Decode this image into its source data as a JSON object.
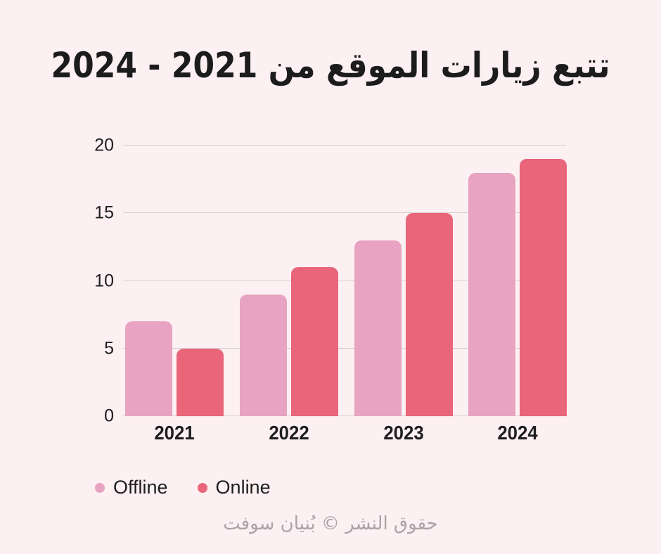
{
  "title": "تتبع زيارات الموقع من 2021 - 2024",
  "footer": "حقوق النشر © بُنيان سوفت",
  "legend": [
    {
      "label": "Offline",
      "color": "#e7a3c1"
    },
    {
      "label": "Online",
      "color": "#e8657a"
    }
  ],
  "colors": {
    "background": "#fdf0f2",
    "offline_bar": "#e7a3c1",
    "online_bar": "#e8657a",
    "gridline": "#d7cfd2",
    "text": "#1e1e1e",
    "footer_text": "#aaa4a7"
  },
  "chart_data": {
    "type": "bar",
    "title": "تتبع زيارات الموقع من 2021 - 2024",
    "categories": [
      "2021",
      "2022",
      "2023",
      "2024"
    ],
    "series": [
      {
        "name": "Offline",
        "color": "#e7a3c1",
        "values": [
          7,
          9,
          13,
          18
        ]
      },
      {
        "name": "Online",
        "color": "#e8657a",
        "values": [
          5,
          11,
          15,
          19
        ]
      }
    ],
    "xlabel": "",
    "ylabel": "",
    "ylim": [
      0,
      20
    ],
    "yticks": [
      0,
      5,
      10,
      15,
      20
    ],
    "grid": true,
    "legend_position": "bottom-left"
  }
}
